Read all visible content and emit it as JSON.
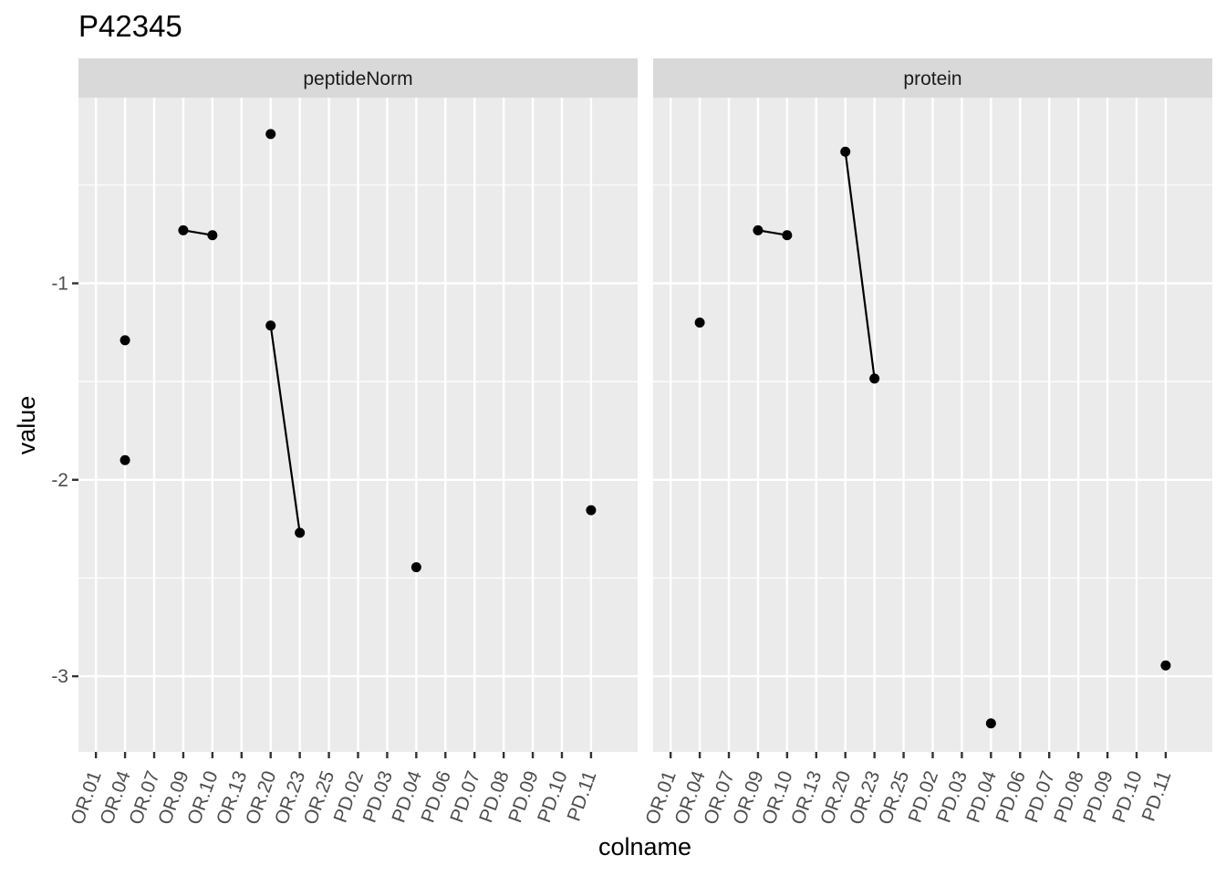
{
  "chart_data": {
    "type": "scatter",
    "title": "P42345",
    "xlabel": "colname",
    "ylabel": "value",
    "categories": [
      "OR.01",
      "OR.04",
      "OR.07",
      "OR.09",
      "OR.10",
      "OR.13",
      "OR.20",
      "OR.23",
      "OR.25",
      "PD.02",
      "PD.03",
      "PD.04",
      "PD.06",
      "PD.07",
      "PD.08",
      "PD.09",
      "PD.10",
      "PD.11"
    ],
    "y_ticks": [
      -1,
      -2,
      -3
    ],
    "ylim": [
      -3.385,
      -0.055
    ],
    "grid": true,
    "legend": "none",
    "panels": [
      {
        "name": "peptideNorm",
        "points": [
          {
            "x": "OR.04",
            "y": -1.29
          },
          {
            "x": "OR.04",
            "y": -1.9
          },
          {
            "x": "OR.09",
            "y": -0.73
          },
          {
            "x": "OR.10",
            "y": -0.755
          },
          {
            "x": "OR.20",
            "y": -0.24
          },
          {
            "x": "OR.20",
            "y": -1.215
          },
          {
            "x": "OR.23",
            "y": -2.27
          },
          {
            "x": "PD.04",
            "y": -2.445
          },
          {
            "x": "PD.11",
            "y": -2.155
          }
        ],
        "lines": [
          [
            {
              "x": "OR.09",
              "y": -0.73
            },
            {
              "x": "OR.10",
              "y": -0.755
            }
          ],
          [
            {
              "x": "OR.20",
              "y": -1.215
            },
            {
              "x": "OR.23",
              "y": -2.27
            }
          ]
        ]
      },
      {
        "name": "protein",
        "points": [
          {
            "x": "OR.04",
            "y": -1.2
          },
          {
            "x": "OR.09",
            "y": -0.73
          },
          {
            "x": "OR.10",
            "y": -0.755
          },
          {
            "x": "OR.20",
            "y": -0.33
          },
          {
            "x": "OR.23",
            "y": -1.485
          },
          {
            "x": "PD.04",
            "y": -3.24
          },
          {
            "x": "PD.11",
            "y": -2.945
          }
        ],
        "lines": [
          [
            {
              "x": "OR.09",
              "y": -0.73
            },
            {
              "x": "OR.10",
              "y": -0.755
            }
          ],
          [
            {
              "x": "OR.20",
              "y": -0.33
            },
            {
              "x": "OR.23",
              "y": -1.485
            }
          ]
        ]
      }
    ],
    "colors": {
      "panel_background": "#ebebeb",
      "strip_background": "#d9d9d9",
      "grid": "#ffffff",
      "points": "#000000",
      "tick_text": "#4d4d4d"
    }
  }
}
